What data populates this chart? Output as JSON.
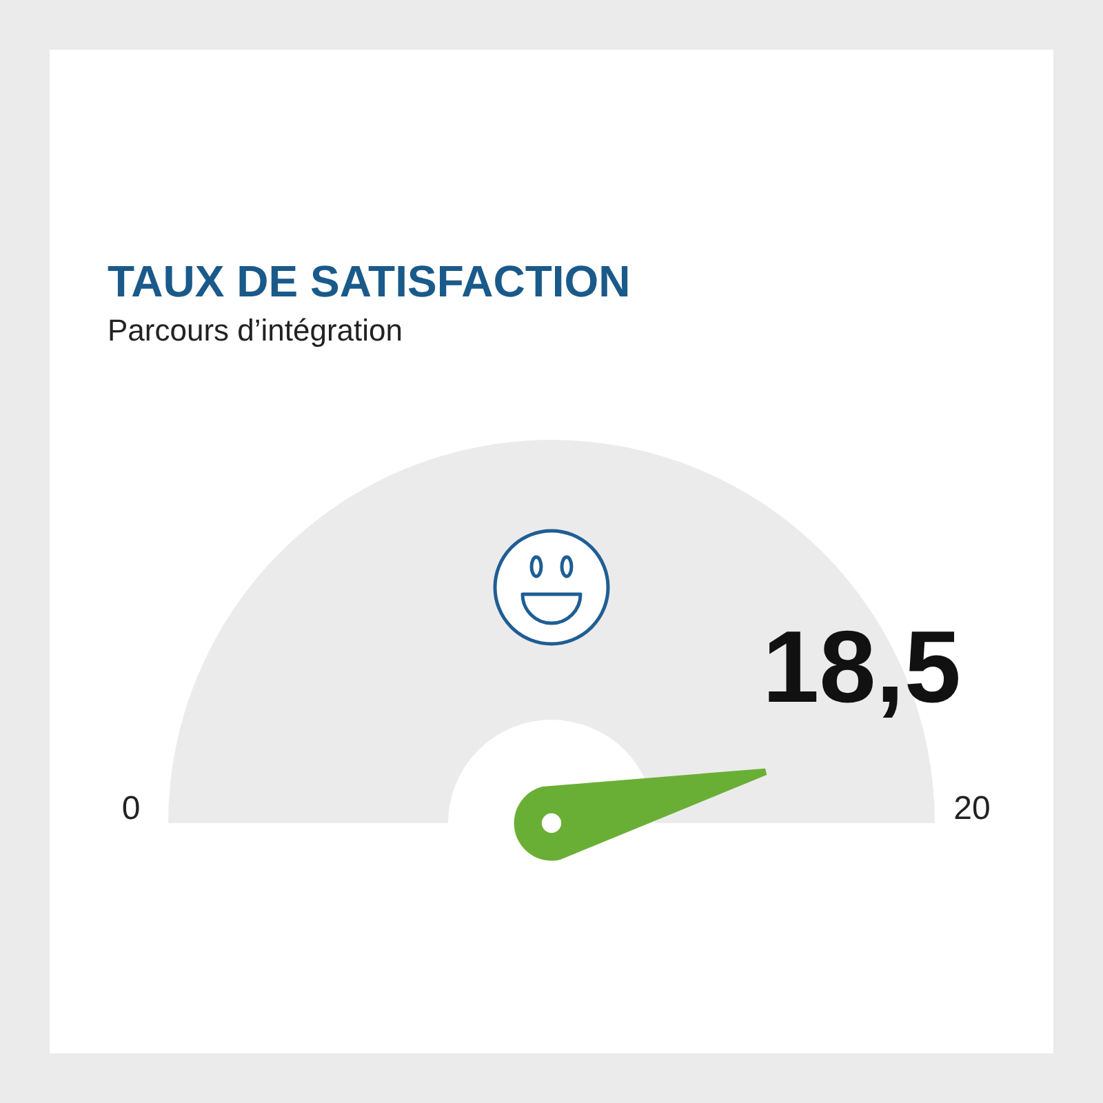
{
  "chart_data": {
    "type": "other",
    "title": "TAUX DE SATISFACTION",
    "subtitle": "Parcours d’intégration",
    "values": [
      18.5
    ],
    "value_labels": [
      "18,5"
    ],
    "annotations": [
      "0",
      "20"
    ],
    "colors": [
      "#ebebeb"
    ]
  }
}
